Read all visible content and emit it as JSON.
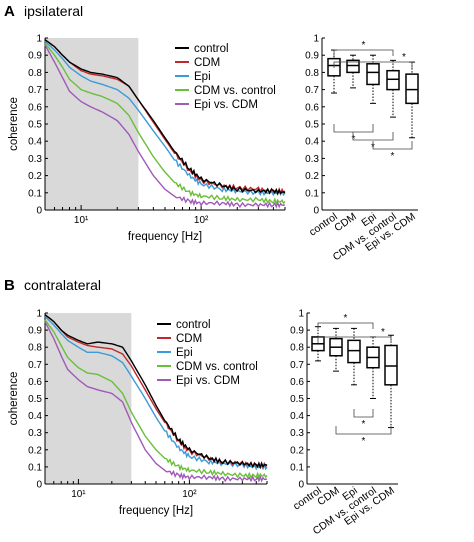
{
  "panels": [
    {
      "letter": "A",
      "title": "ipsilateral",
      "chart_data": [
        {
          "type": "line",
          "xscale": "log",
          "xlim": [
            5,
            500
          ],
          "ylim": [
            0,
            1
          ],
          "xlabel": "frequency [Hz]",
          "ylabel": "coherence",
          "xticks": [
            "10¹",
            "10²"
          ],
          "yticks": [
            "0",
            "0.1",
            "0.2",
            "0.3",
            "0.4",
            "0.5",
            "0.6",
            "0.7",
            "0.8",
            "0.9",
            "1"
          ],
          "shaded_range": [
            5,
            30
          ],
          "legend_position": "top-right",
          "x": [
            5,
            6,
            7,
            8,
            10,
            12,
            15,
            20,
            25,
            30,
            40,
            50,
            60,
            80,
            100,
            150,
            200,
            300,
            400,
            500
          ],
          "series": [
            {
              "name": "control",
              "color": "#000000",
              "values": [
                0.99,
                0.95,
                0.9,
                0.86,
                0.82,
                0.8,
                0.79,
                0.77,
                0.72,
                0.64,
                0.52,
                0.42,
                0.34,
                0.24,
                0.18,
                0.14,
                0.12,
                0.11,
                0.11,
                0.1
              ]
            },
            {
              "name": "CDM",
              "color": "#c0282b",
              "values": [
                0.99,
                0.95,
                0.9,
                0.86,
                0.81,
                0.79,
                0.78,
                0.76,
                0.72,
                0.64,
                0.51,
                0.41,
                0.33,
                0.23,
                0.17,
                0.14,
                0.13,
                0.12,
                0.11,
                0.11
              ]
            },
            {
              "name": "Epi",
              "color": "#3a9bd8",
              "values": [
                0.98,
                0.93,
                0.88,
                0.83,
                0.78,
                0.75,
                0.73,
                0.7,
                0.65,
                0.58,
                0.46,
                0.37,
                0.29,
                0.2,
                0.15,
                0.12,
                0.11,
                0.1,
                0.1,
                0.1
              ]
            },
            {
              "name": "CDM vs. control",
              "color": "#6abf3a",
              "values": [
                0.97,
                0.9,
                0.83,
                0.76,
                0.7,
                0.68,
                0.66,
                0.62,
                0.55,
                0.45,
                0.31,
                0.22,
                0.16,
                0.1,
                0.08,
                0.07,
                0.06,
                0.06,
                0.05,
                0.05
              ]
            },
            {
              "name": "Epi vs. CDM",
              "color": "#a05ab8",
              "values": [
                0.96,
                0.86,
                0.77,
                0.69,
                0.63,
                0.6,
                0.57,
                0.52,
                0.44,
                0.34,
                0.2,
                0.12,
                0.08,
                0.05,
                0.04,
                0.04,
                0.03,
                0.03,
                0.03,
                0.03
              ]
            }
          ]
        },
        {
          "type": "box",
          "ylim": [
            0,
            1
          ],
          "yticks": [
            "0",
            "0.1",
            "0.2",
            "0.3",
            "0.4",
            "0.5",
            "0.6",
            "0.7",
            "0.8",
            "0.9",
            "1"
          ],
          "categories": [
            "control",
            "CDM",
            "Epi",
            "CDM vs. control",
            "Epi vs. CDM"
          ],
          "boxes": [
            {
              "min": 0.68,
              "q1": 0.78,
              "median": 0.84,
              "q3": 0.88,
              "max": 0.93
            },
            {
              "min": 0.71,
              "q1": 0.8,
              "median": 0.84,
              "q3": 0.87,
              "max": 0.9
            },
            {
              "min": 0.62,
              "q1": 0.73,
              "median": 0.8,
              "q3": 0.85,
              "max": 0.9
            },
            {
              "min": 0.54,
              "q1": 0.7,
              "median": 0.76,
              "q3": 0.81,
              "max": 0.87
            },
            {
              "min": 0.42,
              "q1": 0.62,
              "median": 0.7,
              "q3": 0.79,
              "max": 0.86
            }
          ],
          "significance_marker": "*",
          "brackets_top": [
            [
              0,
              3
            ],
            [
              0,
              4
            ]
          ],
          "brackets_bottom": [
            [
              0,
              2
            ],
            [
              1,
              3
            ],
            [
              2,
              4
            ]
          ]
        }
      ]
    },
    {
      "letter": "B",
      "title": "contralateral",
      "chart_data": [
        {
          "type": "line",
          "xscale": "log",
          "xlim": [
            5,
            500
          ],
          "ylim": [
            0,
            1
          ],
          "xlabel": "frequency [Hz]",
          "ylabel": "coherence",
          "xticks": [
            "10¹",
            "10²"
          ],
          "yticks": [
            "0",
            "0.1",
            "0.2",
            "0.3",
            "0.4",
            "0.5",
            "0.6",
            "0.7",
            "0.8",
            "0.9",
            "1"
          ],
          "shaded_range": [
            5,
            30
          ],
          "legend_position": "top-right",
          "x": [
            5,
            6,
            7,
            8,
            10,
            12,
            15,
            20,
            25,
            30,
            40,
            50,
            60,
            80,
            100,
            150,
            200,
            300,
            400,
            500
          ],
          "series": [
            {
              "name": "control",
              "color": "#000000",
              "values": [
                0.99,
                0.95,
                0.9,
                0.87,
                0.84,
                0.82,
                0.83,
                0.82,
                0.8,
                0.72,
                0.58,
                0.46,
                0.37,
                0.26,
                0.2,
                0.15,
                0.13,
                0.12,
                0.11,
                0.11
              ]
            },
            {
              "name": "CDM",
              "color": "#c0282b",
              "values": [
                0.99,
                0.95,
                0.9,
                0.86,
                0.83,
                0.81,
                0.8,
                0.79,
                0.76,
                0.69,
                0.55,
                0.44,
                0.36,
                0.25,
                0.19,
                0.15,
                0.13,
                0.12,
                0.11,
                0.11
              ]
            },
            {
              "name": "Epi",
              "color": "#3a9bd8",
              "values": [
                0.98,
                0.93,
                0.88,
                0.84,
                0.8,
                0.77,
                0.77,
                0.75,
                0.71,
                0.63,
                0.5,
                0.39,
                0.31,
                0.21,
                0.16,
                0.13,
                0.12,
                0.11,
                0.1,
                0.1
              ]
            },
            {
              "name": "CDM vs. control",
              "color": "#6abf3a",
              "values": [
                0.96,
                0.89,
                0.81,
                0.74,
                0.68,
                0.65,
                0.64,
                0.6,
                0.53,
                0.42,
                0.28,
                0.2,
                0.15,
                0.1,
                0.08,
                0.07,
                0.06,
                0.05,
                0.05,
                0.05
              ]
            },
            {
              "name": "Epi vs. CDM",
              "color": "#a05ab8",
              "values": [
                0.95,
                0.85,
                0.75,
                0.67,
                0.61,
                0.57,
                0.55,
                0.53,
                0.48,
                0.36,
                0.2,
                0.12,
                0.08,
                0.05,
                0.04,
                0.04,
                0.03,
                0.03,
                0.03,
                0.03
              ]
            }
          ]
        },
        {
          "type": "box",
          "ylim": [
            0,
            1
          ],
          "yticks": [
            "0",
            "0.1",
            "0.2",
            "0.3",
            "0.4",
            "0.5",
            "0.6",
            "0.7",
            "0.8",
            "0.9",
            "1"
          ],
          "categories": [
            "control",
            "CDM",
            "Epi",
            "CDM vs. control",
            "Epi vs. CDM"
          ],
          "boxes": [
            {
              "min": 0.72,
              "q1": 0.78,
              "median": 0.82,
              "q3": 0.86,
              "max": 0.92
            },
            {
              "min": 0.66,
              "q1": 0.75,
              "median": 0.8,
              "q3": 0.85,
              "max": 0.91
            },
            {
              "min": 0.58,
              "q1": 0.71,
              "median": 0.78,
              "q3": 0.84,
              "max": 0.91
            },
            {
              "min": 0.5,
              "q1": 0.68,
              "median": 0.74,
              "q3": 0.8,
              "max": 0.86
            },
            {
              "min": 0.33,
              "q1": 0.58,
              "median": 0.69,
              "q3": 0.81,
              "max": 0.87
            }
          ],
          "significance_marker": "*",
          "brackets_top": [
            [
              0,
              3
            ],
            [
              0,
              4
            ]
          ],
          "brackets_bottom": [
            [
              2,
              3
            ],
            [
              1,
              4
            ]
          ]
        }
      ]
    }
  ]
}
